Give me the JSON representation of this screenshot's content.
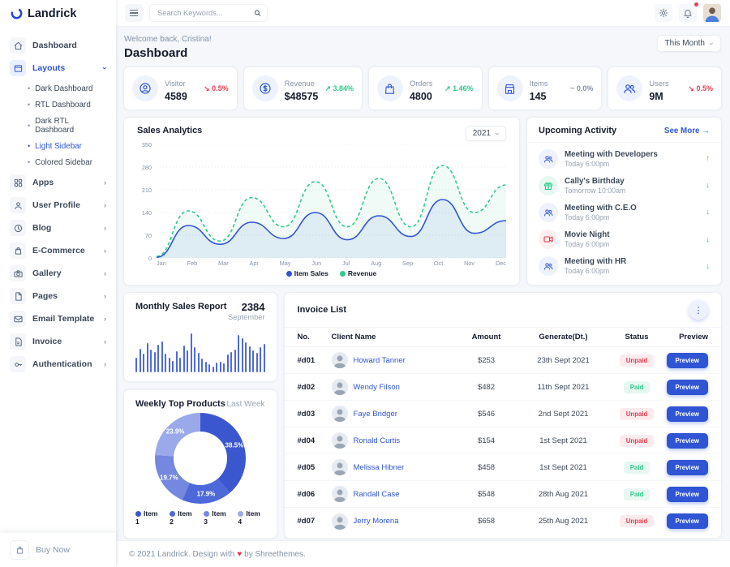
{
  "brand": {
    "name": "Landrick"
  },
  "topbar": {
    "search_placeholder": "Search Keywords..."
  },
  "page": {
    "welcome": "Welcome back, Cristina!",
    "title": "Dashboard",
    "period": "This Month"
  },
  "sidebar": {
    "items": [
      {
        "label": "Dashboard"
      },
      {
        "label": "Layouts"
      },
      {
        "label": "Apps"
      },
      {
        "label": "User Profile"
      },
      {
        "label": "Blog"
      },
      {
        "label": "E-Commerce"
      },
      {
        "label": "Gallery"
      },
      {
        "label": "Pages"
      },
      {
        "label": "Email Template"
      },
      {
        "label": "Invoice"
      },
      {
        "label": "Authentication"
      }
    ],
    "layouts_children": [
      "Dark Dashboard",
      "RTL Dashboard",
      "Dark RTL Dashboard",
      "Light Sidebar",
      "Colored Sidebar"
    ],
    "active_child": "Light Sidebar",
    "buy_now": "Buy Now"
  },
  "stats": [
    {
      "label": "Visitor",
      "value": "4589",
      "arrow": "↘",
      "change": "0.5%",
      "tone": "danger"
    },
    {
      "label": "Revenue",
      "value": "$48575",
      "arrow": "↗",
      "change": "3.84%",
      "tone": "success"
    },
    {
      "label": "Orders",
      "value": "4800",
      "arrow": "↗",
      "change": "1.46%",
      "tone": "success"
    },
    {
      "label": "Items",
      "value": "145",
      "arrow": "~",
      "change": "0.0%",
      "tone": "muted"
    },
    {
      "label": "Users",
      "value": "9M",
      "arrow": "↘",
      "change": "0.5%",
      "tone": "danger"
    }
  ],
  "activity": {
    "title": "Upcoming Activity",
    "see_more": "See More",
    "see_more_arrow": "→",
    "items": [
      {
        "title": "Meeting with Developers",
        "time": "Today 6:00pm",
        "arrow": "↑",
        "arrow_tone": "warning"
      },
      {
        "title": "Cally's Birthday",
        "time": "Tomorrow 10:00am",
        "arrow": "↓",
        "arrow_tone": "success"
      },
      {
        "title": "Meeting with C.E.O",
        "time": "Today 6:00pm",
        "arrow": "↓",
        "arrow_tone": "success"
      },
      {
        "title": "Movie Night",
        "time": "Today 6:00pm",
        "arrow": "↓",
        "arrow_tone": "success"
      },
      {
        "title": "Meeting with HR",
        "time": "Today 6:00pm",
        "arrow": "↓",
        "arrow_tone": "success"
      }
    ]
  },
  "invoices": {
    "title": "Invoice List",
    "menu_icon": "⋮",
    "columns": [
      "No.",
      "Client Name",
      "Amount",
      "Generate(Dt.)",
      "Status",
      "Preview"
    ],
    "rows": [
      {
        "no": "#d01",
        "name": "Howard Tanner",
        "amount": "$253",
        "date": "23th Sept 2021",
        "status": "Unpaid",
        "status_class": "unpaid",
        "preview": "Preview"
      },
      {
        "no": "#d02",
        "name": "Wendy Filson",
        "amount": "$482",
        "date": "11th Sept 2021",
        "status": "Paid",
        "status_class": "paid",
        "preview": "Preview"
      },
      {
        "no": "#d03",
        "name": "Faye Bridger",
        "amount": "$546",
        "date": "2nd Sept 2021",
        "status": "Unpaid",
        "status_class": "unpaid",
        "preview": "Preview"
      },
      {
        "no": "#d04",
        "name": "Ronald Curtis",
        "amount": "$154",
        "date": "1st Sept 2021",
        "status": "Unpaid",
        "status_class": "unpaid",
        "preview": "Preview"
      },
      {
        "no": "#d05",
        "name": "Melissa Hibner",
        "amount": "$458",
        "date": "1st Sept 2021",
        "status": "Paid",
        "status_class": "paid",
        "preview": "Preview"
      },
      {
        "no": "#d06",
        "name": "Randall Case",
        "amount": "$548",
        "date": "28th Aug 2021",
        "status": "Paid",
        "status_class": "paid",
        "preview": "Preview"
      },
      {
        "no": "#d07",
        "name": "Jerry Morena",
        "amount": "$658",
        "date": "25th Aug 2021",
        "status": "Unpaid",
        "status_class": "unpaid",
        "preview": "Preview"
      }
    ]
  },
  "chart_data": [
    {
      "type": "line",
      "title": "Sales Analytics",
      "year_selector": "2021",
      "x": [
        "Jan",
        "Feb",
        "Mar",
        "Apr",
        "May",
        "Jun",
        "Jul",
        "Aug",
        "Sep",
        "Oct",
        "Nov",
        "Dec"
      ],
      "ylim": [
        0,
        350
      ],
      "yticks": [
        0,
        70,
        140,
        210,
        280,
        350
      ],
      "grid": true,
      "legend_position": "bottom",
      "series": [
        {
          "name": "Item Sales",
          "color": "#2f55d4",
          "style": "solid",
          "values": [
            2,
            100,
            42,
            110,
            60,
            140,
            56,
            130,
            66,
            180,
            76,
            115
          ]
        },
        {
          "name": "Revenue",
          "color": "#2eca8b",
          "style": "dashed",
          "values": [
            5,
            145,
            52,
            186,
            96,
            235,
            96,
            245,
            96,
            285,
            140,
            225
          ]
        }
      ]
    },
    {
      "type": "bar",
      "title": "Monthly Sales Report",
      "total": "2384",
      "month": "September",
      "color": "#4f6ad7",
      "ylim": [
        0,
        100
      ],
      "values": [
        38,
        60,
        48,
        75,
        58,
        52,
        70,
        80,
        48,
        38,
        30,
        55,
        38,
        68,
        56,
        100,
        64,
        50,
        36,
        28,
        20,
        14,
        24,
        28,
        22,
        46,
        52,
        58,
        95,
        88,
        78,
        66,
        56,
        50,
        64,
        72
      ]
    },
    {
      "type": "pie",
      "title": "Weekly Top Products",
      "subtitle": "Last Week",
      "labels": [
        "Item 1",
        "Item 2",
        "Item 3",
        "Item 4"
      ],
      "values": [
        38.5,
        17.9,
        19.7,
        23.9
      ],
      "value_labels": [
        "38.5%",
        "17.9%",
        "19.7%",
        "23.9%"
      ],
      "colors": [
        "#3b57d0",
        "#4d68d8",
        "#7388de",
        "#9aa9e9"
      ]
    }
  ],
  "footer": {
    "text_before": "© 2021 Landrick. Design with",
    "heart": "♥",
    "text_after": "by Shreethemes."
  }
}
